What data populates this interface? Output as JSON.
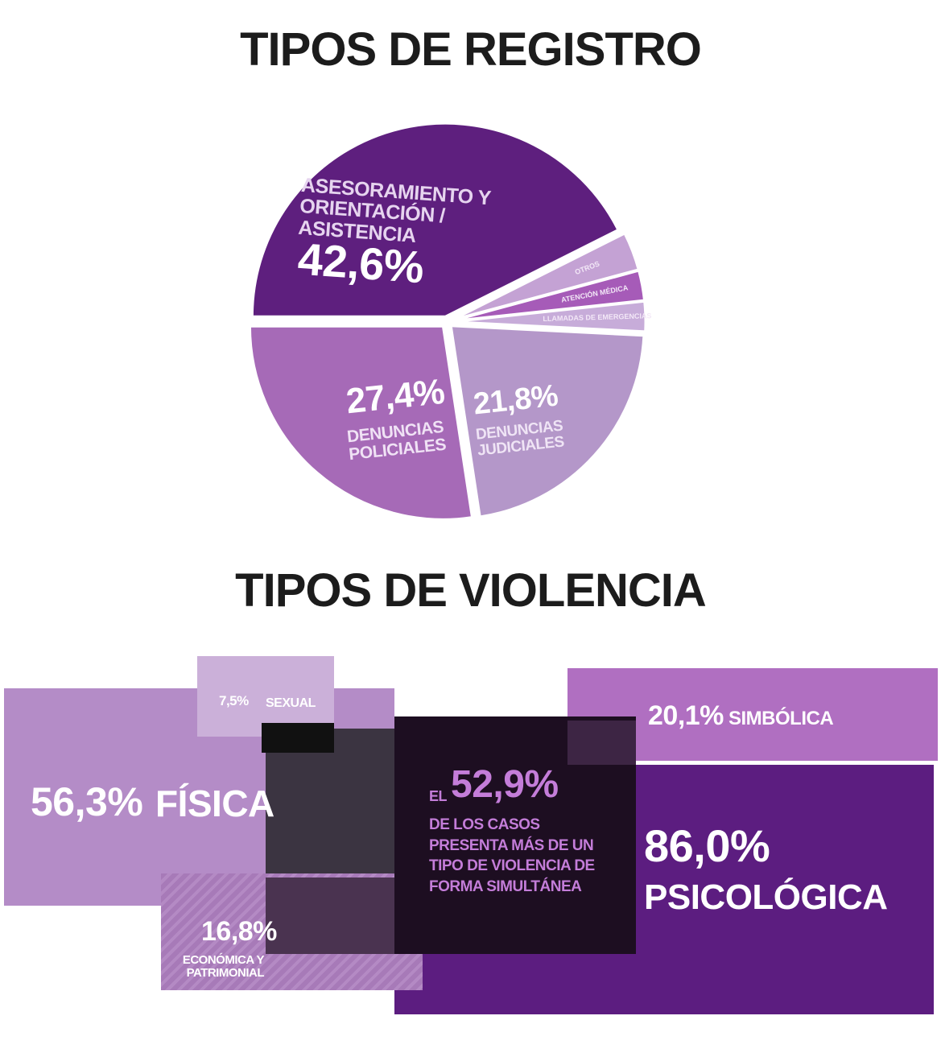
{
  "chart_data": {
    "type": "pie",
    "title": "TIPOS DE REGISTRO",
    "categories": [
      "ASESORAMIENTO Y ORIENTACIÓN / ASISTENCIA",
      "OTROS",
      "ATENCIÓN MÉDICA",
      "LLAMADAS DE EMERGENCIAS",
      "DENUNCIAS JUDICIALES",
      "DENUNCIAS POLICIALES"
    ],
    "values": [
      42.6,
      3.2,
      2.5,
      2.5,
      21.8,
      27.4
    ],
    "value_labels": [
      "42,6%",
      null,
      null,
      null,
      "21,8%",
      "27,4%"
    ],
    "colors": [
      "#5e1f7e",
      "#c4a2d4",
      "#a65bb8",
      "#c7acd9",
      "#b497c9",
      "#a66ab7"
    ]
  },
  "violence": {
    "title": "TIPOS DE VIOLENCIA",
    "items": [
      {
        "value": "7,5%",
        "label": "SEXUAL"
      },
      {
        "value": "56,3%",
        "label": "FÍSICA"
      },
      {
        "value": "16,8%",
        "label": "ECONÓMICA Y PATRIMONIAL"
      },
      {
        "value": "20,1%",
        "label": "SIMBÓLICA"
      },
      {
        "value": "86,0%",
        "label": "PSICOLÓGICA"
      }
    ],
    "note": {
      "prefix": "EL",
      "value": "52,9%",
      "text": "DE LOS CASOS PRESENTA MÁS DE UN TIPO DE VIOLENCIA DE FORMA SIMULTÁNEA"
    }
  }
}
